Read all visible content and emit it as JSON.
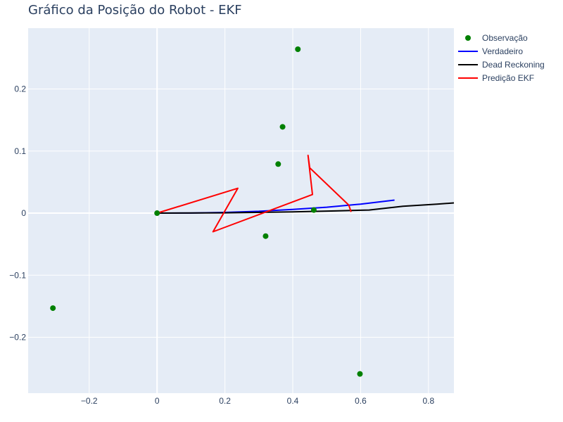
{
  "chart_data": {
    "type": "scatter",
    "title": "Gráfico da Posição do Robot - EKF",
    "xlabel": "",
    "ylabel": "",
    "xlim": [
      -0.38,
      0.875
    ],
    "ylim": [
      -0.29,
      0.298
    ],
    "x_ticks": [
      -0.2,
      0,
      0.2,
      0.4,
      0.6,
      0.8
    ],
    "x_tick_labels": [
      "−0.2",
      "0",
      "0.2",
      "0.4",
      "0.6",
      "0.8"
    ],
    "y_ticks": [
      -0.2,
      -0.1,
      0,
      0.1,
      0.2
    ],
    "y_tick_labels": [
      "−0.2",
      "−0.1",
      "0",
      "0.1",
      "0.2"
    ],
    "grid": true,
    "legend_position": "top-right",
    "background": "#e5ecf6",
    "series": [
      {
        "name": "Observação",
        "mode": "markers",
        "color": "#008000",
        "x": [
          0,
          0.415,
          0.37,
          0.357,
          0.462,
          0.32,
          -0.307,
          0.598
        ],
        "y": [
          0,
          0.264,
          0.139,
          0.079,
          0.005,
          -0.037,
          -0.153,
          -0.259
        ]
      },
      {
        "name": "Verdadeiro",
        "mode": "line",
        "color": "#0000ff",
        "x": [
          0,
          0.1,
          0.2,
          0.3,
          0.4,
          0.5,
          0.6,
          0.7
        ],
        "y": [
          0,
          0.0002,
          0.0012,
          0.003,
          0.006,
          0.0095,
          0.0145,
          0.021
        ]
      },
      {
        "name": "Dead Reckoning",
        "mode": "line",
        "color": "#000000",
        "x": [
          0,
          0.2,
          0.4,
          0.525,
          0.625,
          0.725,
          0.825,
          0.875
        ],
        "y": [
          0,
          0.0005,
          0.002,
          0.0035,
          0.005,
          0.011,
          0.0145,
          0.0165
        ]
      },
      {
        "name": "Predição EKF",
        "mode": "line",
        "color": "#ff0000",
        "x": [
          0,
          0.238,
          0.165,
          0.458,
          0.445,
          0.45,
          0.565,
          0.572
        ],
        "y": [
          0,
          0.04,
          -0.03,
          0.03,
          0.093,
          0.073,
          0.013,
          0.002
        ]
      }
    ]
  }
}
